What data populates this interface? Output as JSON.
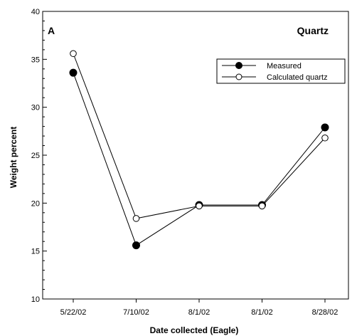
{
  "chart_data": {
    "type": "line",
    "title": "Quartz",
    "panel_label": "A",
    "xlabel": "Date collected (Eagle)",
    "ylabel": "Weight percent",
    "categories": [
      "5/22/02",
      "7/10/02",
      "8/1/02",
      "8/1/02",
      "8/28/02"
    ],
    "ylim": [
      10,
      40
    ],
    "yticks": [
      10,
      15,
      20,
      25,
      30,
      35,
      40
    ],
    "grid": false,
    "legend_position": "top-right",
    "series": [
      {
        "name": "Measured",
        "marker": "filled-circle",
        "color": "#000000",
        "values": [
          33.6,
          15.6,
          19.8,
          19.8,
          27.9
        ]
      },
      {
        "name": "Calculated quartz",
        "marker": "open-circle",
        "color": "#000000",
        "values": [
          35.6,
          18.4,
          19.7,
          19.7,
          26.8
        ]
      }
    ]
  }
}
